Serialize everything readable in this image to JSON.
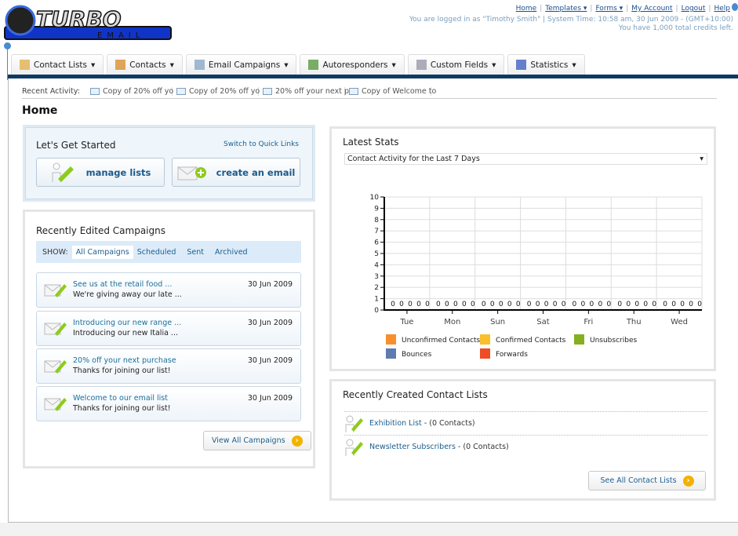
{
  "logo": {
    "text": "TURBO",
    "sub": "EMAIL"
  },
  "header": {
    "links": [
      "Home",
      "Templates ▾",
      "Forms ▾",
      "My Account",
      "Logout",
      "Help"
    ],
    "login_info": "You are logged in as \"Timothy Smith\" | System Time: 10:58 am, 30 Jun 2009 - (GMT+10:00)",
    "credits": "You have 1,000 total credits left."
  },
  "nav": {
    "tabs": [
      {
        "label": "Contact Lists",
        "icon": "contact-lists-icon"
      },
      {
        "label": "Contacts",
        "icon": "contacts-icon"
      },
      {
        "label": "Email Campaigns",
        "icon": "envelope-icon"
      },
      {
        "label": "Autoresponders",
        "icon": "autoresponder-icon"
      },
      {
        "label": "Custom Fields",
        "icon": "custom-fields-icon"
      },
      {
        "label": "Statistics",
        "icon": "bar-chart-icon"
      }
    ]
  },
  "recent_activity": {
    "label": "Recent Activity:",
    "items": [
      "Copy of 20% off yo",
      "Copy of 20% off yo",
      "20% off your next p",
      "Copy of Welcome to"
    ]
  },
  "page_title": "Home",
  "get_started": {
    "title": "Let's Get Started",
    "switch_link": "Switch to Quick Links",
    "manage_lists": "manage lists",
    "create_email": "create an email"
  },
  "campaigns": {
    "title": "Recently Edited Campaigns",
    "show_label": "SHOW:",
    "filters": [
      "All Campaigns",
      "Scheduled",
      "Sent",
      "Archived"
    ],
    "items": [
      {
        "name": "See us at the retail food ...",
        "desc": "We're giving away our late ...",
        "date": "30 Jun 2009"
      },
      {
        "name": "Introducing our new range ...",
        "desc": "Introducing our new Italia ...",
        "date": "30 Jun 2009"
      },
      {
        "name": "20% off your next purchase",
        "desc": "Thanks for joining our list!",
        "date": "30 Jun 2009"
      },
      {
        "name": "Welcome to our email list",
        "desc": "Thanks for joining our list!",
        "date": "30 Jun 2009"
      }
    ],
    "view_all": "View All Campaigns"
  },
  "stats": {
    "title": "Latest Stats",
    "select": "Contact Activity for the Last 7 Days"
  },
  "chart_data": {
    "type": "bar",
    "categories": [
      "Tue",
      "Mon",
      "Sun",
      "Sat",
      "Fri",
      "Thu",
      "Wed"
    ],
    "ylim": [
      0,
      10
    ],
    "yticks": [
      0,
      1,
      2,
      3,
      4,
      5,
      6,
      7,
      8,
      9,
      10
    ],
    "grid": true,
    "legend": "bottom",
    "series": [
      {
        "name": "Unconfirmed Contacts",
        "color": "#f7902c",
        "values": [
          0,
          0,
          0,
          0,
          0,
          0,
          0
        ]
      },
      {
        "name": "Confirmed Contacts",
        "color": "#fbbf2a",
        "values": [
          0,
          0,
          0,
          0,
          0,
          0,
          0
        ]
      },
      {
        "name": "Unsubscribes",
        "color": "#84b020",
        "values": [
          0,
          0,
          0,
          0,
          0,
          0,
          0
        ]
      },
      {
        "name": "Bounces",
        "color": "#5f7bb0",
        "values": [
          0,
          0,
          0,
          0,
          0,
          0,
          0
        ]
      },
      {
        "name": "Forwards",
        "color": "#ee4c24",
        "values": [
          0,
          0,
          0,
          0,
          0,
          0,
          0
        ]
      }
    ]
  },
  "contact_lists": {
    "title": "Recently Created Contact Lists",
    "items": [
      {
        "name": "Exhibition List",
        "count": " - (0 Contacts)"
      },
      {
        "name": "Newsletter Subscribers",
        "count": " - (0 Contacts)"
      }
    ],
    "see_all": "See All Contact Lists"
  }
}
